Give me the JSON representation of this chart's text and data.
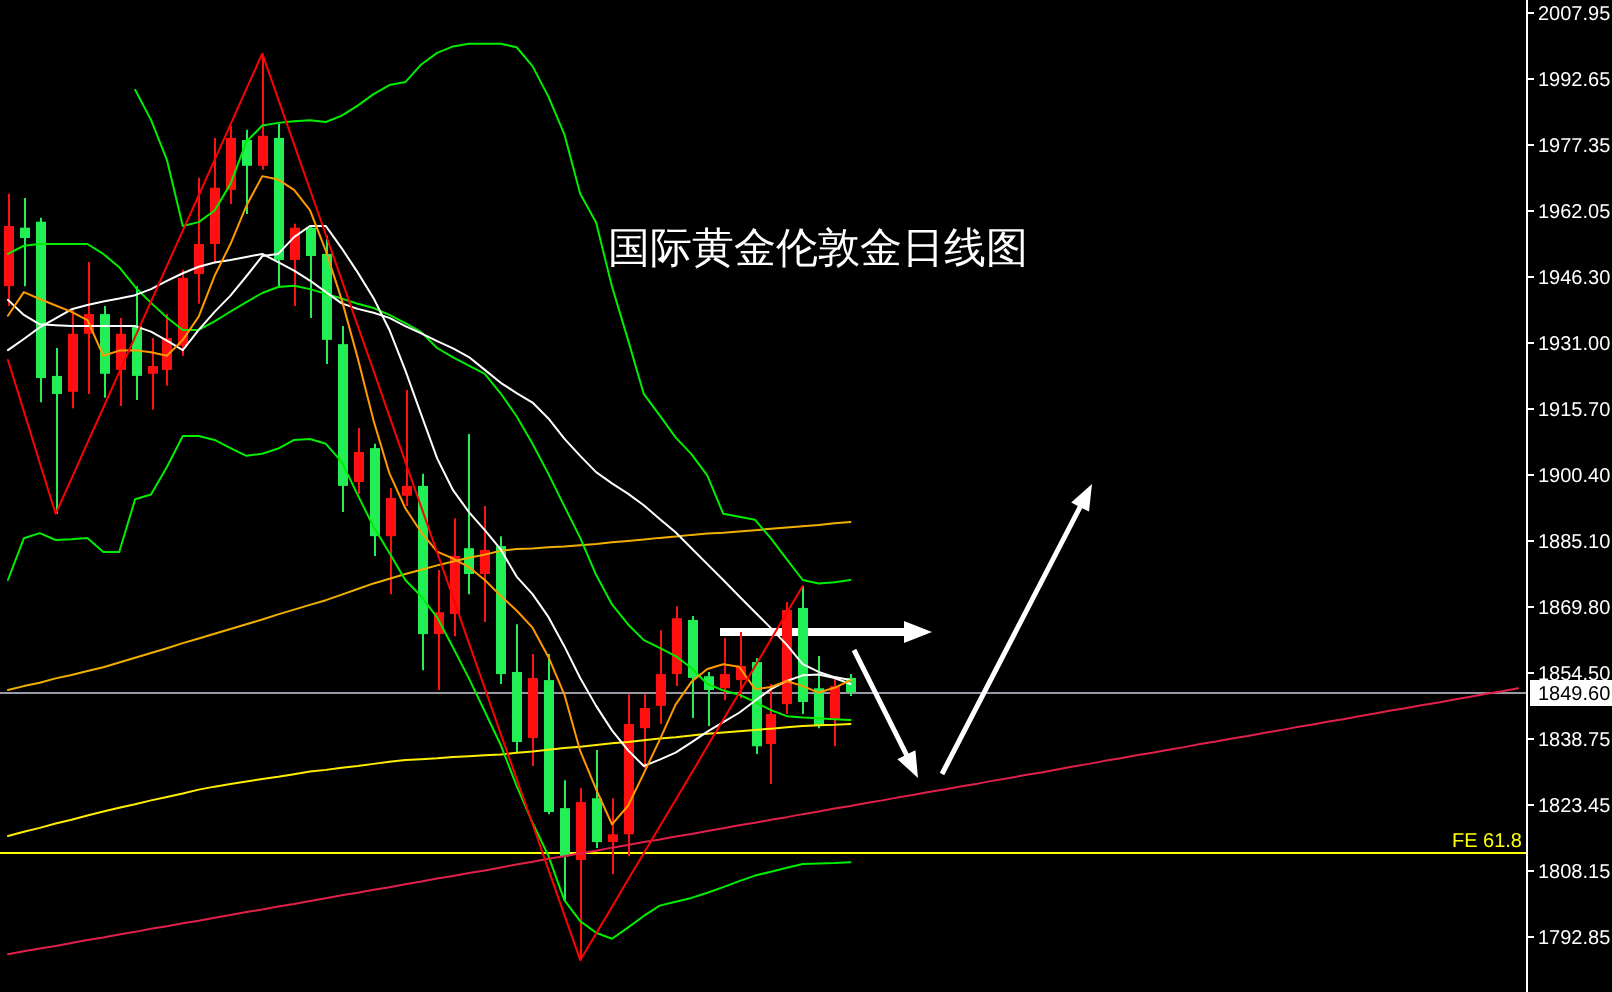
{
  "chart_data": {
    "type": "candlestick",
    "title": "国际黄金伦敦金日线图",
    "categories": [
      null,
      null,
      null,
      null,
      null,
      null,
      null,
      null,
      null,
      null,
      null,
      null,
      null,
      null,
      null,
      null,
      null,
      null,
      null,
      null,
      null,
      null,
      null,
      null,
      null,
      null,
      null,
      null,
      null,
      null,
      null,
      null,
      null,
      null,
      null,
      null,
      null,
      null,
      null,
      null,
      null,
      null,
      null,
      null,
      null,
      null,
      null,
      null,
      null,
      null,
      null,
      null,
      null,
      null,
      null,
      null,
      null,
      null,
      null,
      null,
      null,
      null,
      null,
      null,
      null,
      null,
      null,
      null,
      null,
      null,
      null,
      null,
      null,
      null,
      null,
      null,
      null,
      null,
      null,
      null,
      null,
      null,
      null,
      null,
      null,
      null,
      null,
      null,
      null,
      null,
      null,
      null,
      null,
      null,
      null,
      null
    ],
    "ohlc": [
      [
        1944.1,
        1965.6,
        1939.5,
        1958.1
      ],
      [
        1957.7,
        1964.6,
        1944.1,
        1955.3
      ],
      [
        1959.1,
        1960.0,
        1917.1,
        1922.7
      ],
      [
        1923.2,
        1929.7,
        1891.1,
        1919.0
      ],
      [
        1919.5,
        1938.6,
        1915.7,
        1933.0
      ],
      [
        1933.0,
        1949.7,
        1919.0,
        1937.6
      ],
      [
        1937.6,
        1939.5,
        1918.1,
        1923.7
      ],
      [
        1924.6,
        1936.7,
        1916.2,
        1933.0
      ],
      [
        1934.8,
        1944.1,
        1917.6,
        1923.2
      ],
      [
        1923.7,
        1932.0,
        1915.3,
        1925.5
      ],
      [
        1924.6,
        1937.6,
        1920.9,
        1932.0
      ],
      [
        1930.2,
        1947.9,
        1927.9,
        1946.0
      ],
      [
        1946.9,
        1969.3,
        1940.0,
        1953.9
      ],
      [
        1953.9,
        1978.6,
        1949.7,
        1967.0
      ],
      [
        1966.5,
        1981.4,
        1963.2,
        1978.6
      ],
      [
        1978.1,
        1980.5,
        1960.9,
        1972.1
      ],
      [
        1972.1,
        1998.2,
        1971.2,
        1979.1
      ],
      [
        1978.6,
        1981.9,
        1944.1,
        1950.2
      ],
      [
        1950.2,
        1958.6,
        1939.5,
        1957.7
      ],
      [
        1957.7,
        1958.1,
        1936.7,
        1951.1
      ],
      [
        1951.6,
        1955.8,
        1926.0,
        1931.6
      ],
      [
        1930.6,
        1934.8,
        1891.5,
        1897.6
      ],
      [
        1898.5,
        1911.1,
        1895.7,
        1905.5
      ],
      [
        1906.4,
        1907.4,
        1881.3,
        1885.9
      ],
      [
        1885.9,
        1897.1,
        1872.4,
        1894.8
      ],
      [
        1895.3,
        1919.9,
        1892.9,
        1897.6
      ],
      [
        1897.6,
        1900.4,
        1854.7,
        1863.1
      ],
      [
        1863.1,
        1878.0,
        1850.1,
        1868.2
      ],
      [
        1867.8,
        1890.1,
        1862.6,
        1881.3
      ],
      [
        1883.1,
        1909.7,
        1872.4,
        1877.1
      ],
      [
        1877.1,
        1892.9,
        1865.9,
        1882.7
      ],
      [
        1883.6,
        1885.9,
        1851.5,
        1853.8
      ],
      [
        1854.3,
        1865.4,
        1835.6,
        1838.0
      ],
      [
        1838.9,
        1858.5,
        1832.4,
        1852.9
      ],
      [
        1852.4,
        1858.5,
        1821.2,
        1821.7
      ],
      [
        1822.6,
        1829.1,
        1801.2,
        1811.4
      ],
      [
        1810.5,
        1827.3,
        1787.2,
        1824.0
      ],
      [
        1824.9,
        1836.1,
        1813.3,
        1814.7
      ],
      [
        1814.7,
        1824.9,
        1807.2,
        1816.5
      ],
      [
        1816.5,
        1849.1,
        1811.4,
        1842.2
      ],
      [
        1841.2,
        1849.1,
        1831.9,
        1845.9
      ],
      [
        1846.4,
        1864.0,
        1842.2,
        1853.8
      ],
      [
        1853.8,
        1869.6,
        1851.0,
        1866.8
      ],
      [
        1866.4,
        1867.3,
        1843.6,
        1852.9
      ],
      [
        1853.3,
        1854.3,
        1841.7,
        1850.1
      ],
      [
        1850.5,
        1862.2,
        1847.7,
        1853.8
      ],
      [
        1852.4,
        1863.6,
        1848.2,
        1855.7
      ],
      [
        1856.6,
        1857.5,
        1835.2,
        1837.0
      ],
      [
        1837.5,
        1851.5,
        1828.2,
        1844.5
      ],
      [
        1846.8,
        1870.6,
        1844.5,
        1868.7
      ],
      [
        1869.2,
        1874.3,
        1844.5,
        1847.3
      ],
      [
        1850.5,
        1858.0,
        1841.2,
        1841.7
      ],
      [
        1843.1,
        1852.9,
        1837.0,
        1851.0
      ],
      [
        1852.9,
        1853.8,
        1848.7,
        1849.6
      ],
      null,
      null,
      null,
      null,
      null,
      null,
      null,
      null,
      null,
      null,
      null,
      null,
      null,
      null,
      null,
      null,
      null,
      null,
      null,
      null,
      null,
      null,
      null,
      null,
      null,
      null,
      null,
      null,
      null,
      null,
      null,
      null,
      null,
      null,
      null,
      null,
      null,
      null,
      null,
      null,
      null,
      null
    ],
    "colors": [
      "#ff1010",
      "#22ee55",
      "#22ee55",
      "#22ee55",
      "#ff1010",
      "#ff1010",
      "#22ee55",
      "#ff1010",
      "#22ee55",
      "#ff1010",
      "#ff1010",
      "#ff1010",
      "#ff1010",
      "#ff1010",
      "#ff1010",
      "#22ee55",
      "#ff1010",
      "#22ee55",
      "#ff1010",
      "#22ee55",
      "#22ee55",
      "#22ee55",
      "#ff1010",
      "#22ee55",
      "#ff1010",
      "#ff1010",
      "#22ee55",
      "#ff1010",
      "#ff1010",
      "#22ee55",
      "#ff1010",
      "#22ee55",
      "#22ee55",
      "#ff1010",
      "#22ee55",
      "#22ee55",
      "#ff1010",
      "#22ee55",
      "#ff1010",
      "#ff1010",
      "#ff1010",
      "#ff1010",
      "#ff1010",
      "#22ee55",
      "#22ee55",
      "#ff1010",
      "#ff1010",
      "#22ee55",
      "#ff1010",
      "#ff1010",
      "#22ee55",
      "#22ee55",
      "#ff1010",
      "#22ee55",
      null,
      null,
      null,
      null,
      null,
      null,
      null,
      null,
      null,
      null,
      null,
      null,
      null,
      null,
      null,
      null,
      null,
      null,
      null,
      null,
      null,
      null,
      null,
      null,
      null,
      null,
      null,
      null,
      null,
      null,
      null,
      null,
      null,
      null,
      null,
      null,
      null,
      null,
      null,
      null,
      null,
      null
    ],
    "series": [
      {
        "type": "line",
        "color": "#ffee00",
        "values": [
          1816.1,
          1817.1,
          1818.0,
          1819.0,
          1819.9,
          1820.9,
          1821.8,
          1822.7,
          1823.5,
          1824.4,
          1825.2,
          1826.0,
          1826.9,
          1827.6,
          1828.2,
          1828.8,
          1829.4,
          1829.9,
          1830.5,
          1831.1,
          1831.5,
          1832.0,
          1832.4,
          1832.9,
          1833.4,
          1833.8,
          1834.0,
          1834.2,
          1834.5,
          1834.7,
          1834.9,
          1835.1,
          1835.5,
          1835.8,
          1836.2,
          1836.6,
          1836.9,
          1837.3,
          1837.7,
          1838.0,
          1838.4,
          1838.8,
          1839.1,
          1839.5,
          1839.9,
          1840.2,
          1840.5,
          1840.8,
          1841.1,
          1841.4,
          1841.7,
          1841.9,
          1842.0,
          1842.2,
          null,
          null,
          null,
          null,
          null,
          null,
          null,
          null,
          null,
          null,
          null,
          null,
          null,
          null,
          null,
          null,
          null,
          null,
          null,
          null,
          null,
          null,
          null,
          null,
          null,
          null,
          null,
          null,
          null,
          null,
          null,
          null,
          null,
          null,
          null,
          null,
          null,
          null,
          null,
          null,
          null,
          null
        ]
      },
      {
        "type": "line",
        "color": "#f0b000",
        "values": [
          1850.1,
          1851.0,
          1851.8,
          1852.8,
          1853.6,
          1854.5,
          1855.4,
          1856.5,
          1857.6,
          1858.7,
          1859.8,
          1861.0,
          1862.1,
          1863.2,
          1864.3,
          1865.4,
          1866.5,
          1867.7,
          1868.8,
          1869.9,
          1871.0,
          1872.3,
          1873.6,
          1874.9,
          1876.0,
          1877.1,
          1878.1,
          1879.1,
          1880.0,
          1880.9,
          1881.6,
          1882.5,
          1882.9,
          1883.0,
          1883.3,
          1883.5,
          1883.8,
          1884.1,
          1884.5,
          1884.8,
          1885.1,
          1885.5,
          1885.8,
          1886.2,
          1886.5,
          1886.7,
          1887.0,
          1887.3,
          1887.6,
          1887.9,
          1888.2,
          1888.5,
          1888.9,
          1889.2,
          null,
          null,
          null,
          null,
          null,
          null,
          null,
          null,
          null,
          null,
          null,
          null,
          null,
          null,
          null,
          null,
          null,
          null,
          null,
          null,
          null,
          null,
          null,
          null,
          null,
          null,
          null,
          null,
          null,
          null,
          null,
          null,
          null,
          null,
          null,
          null,
          null,
          null,
          null,
          null,
          null,
          null
        ]
      },
      {
        "type": "line",
        "color": "#00ee00",
        "values": [
          1875.7,
          1885.4,
          1886.6,
          1885.0,
          1885.2,
          1885.5,
          1882.2,
          1882.2,
          1894.5,
          1895.6,
          1902.0,
          1909.2,
          1909.2,
          1908.3,
          1906.4,
          1904.6,
          1905.1,
          1906.3,
          1908.3,
          1908.5,
          1907.4,
          1903.2,
          1895.5,
          1888.1,
          1882.0,
          1875.7,
          1871.9,
          1867.0,
          1860.0,
          1852.8,
          1845.1,
          1837.3,
          1827.8,
          1819.2,
          1811.5,
          1801.2,
          1796.3,
          1793.6,
          1792.2,
          1794.8,
          1797.5,
          1799.9,
          1800.8,
          1801.7,
          1802.9,
          1804.2,
          1805.6,
          1806.9,
          1807.8,
          1808.7,
          1809.6,
          1809.7,
          1809.8,
          1810.0,
          null,
          null,
          null,
          null,
          null,
          null,
          null,
          null,
          null,
          null,
          null,
          null,
          null,
          null,
          null,
          null,
          null,
          null,
          null,
          null,
          null,
          null,
          null,
          null,
          null,
          null,
          null,
          null,
          null,
          null,
          null,
          null,
          null,
          null,
          null,
          null,
          null,
          null,
          null,
          null,
          null,
          null
        ]
      },
      {
        "type": "line",
        "color": "#00ee00",
        "values": [
          1951.6,
          1953.5,
          1953.9,
          1953.9,
          1953.9,
          1953.9,
          1951.6,
          1948.5,
          1943.9,
          1940.2,
          1936.8,
          1933.9,
          1933.9,
          1935.9,
          1938.2,
          1940.4,
          1942.5,
          1943.9,
          1944.2,
          1943.4,
          1942.3,
          1941.2,
          1940.0,
          1939.0,
          1937.4,
          1935.5,
          1933.4,
          1929.7,
          1927.5,
          1925.6,
          1923.7,
          1919.1,
          1913.8,
          1907.4,
          1900.4,
          1892.9,
          1885.5,
          1876.9,
          1870.0,
          1865.4,
          1861.7,
          1859.9,
          1858.0,
          1855.2,
          1851.5,
          1850.0,
          1849.0,
          1847.3,
          1845.4,
          1844.0,
          1843.7,
          1843.5,
          1843.3,
          1843.1,
          null,
          null,
          null,
          null,
          null,
          null,
          null,
          null,
          null,
          null,
          null,
          null,
          null,
          null,
          null,
          null,
          null,
          null,
          null,
          null,
          null,
          null,
          null,
          null,
          null,
          null,
          null,
          null,
          null,
          null,
          null,
          null,
          null,
          null,
          null,
          null,
          null,
          null,
          null,
          null,
          null,
          null
        ]
      },
      {
        "type": "line",
        "color": "#00ee00",
        "values": [
          null,
          null,
          null,
          null,
          null,
          null,
          null,
          null,
          1989.8,
          1982.8,
          1973.5,
          1958.1,
          1959.0,
          1961.7,
          1967.9,
          1977.7,
          1981.5,
          1982.1,
          1982.5,
          1982.7,
          1982.3,
          1983.8,
          1986.1,
          1988.8,
          1990.9,
          1991.6,
          1995.7,
          1998.4,
          1999.9,
          2000.5,
          2000.5,
          2000.5,
          1999.7,
          1995.3,
          1988.2,
          1979.5,
          1965.6,
          1958.9,
          1944.0,
          1931.7,
          1919.0,
          1914.0,
          1908.9,
          1905.0,
          1900.0,
          1891.1,
          1890.4,
          1889.7,
          1885.4,
          1880.5,
          1875.7,
          1874.9,
          1875.2,
          1875.7,
          null,
          null,
          null,
          null,
          null,
          null,
          null,
          null,
          null,
          null,
          null,
          null,
          null,
          null,
          null,
          null,
          null,
          null,
          null,
          null,
          null,
          null,
          null,
          null,
          null,
          null,
          null,
          null,
          null,
          null,
          null,
          null,
          null,
          null,
          null,
          null,
          null,
          null,
          null,
          null,
          null,
          null
        ]
      },
      {
        "type": "line",
        "color": "#ffffff",
        "values": [
          1929.2,
          1931.8,
          1934.5,
          1936.6,
          1938.7,
          1939.7,
          1940.5,
          1941.2,
          1942.0,
          1943.4,
          1945.3,
          1947.1,
          1948.6,
          1949.6,
          1950.2,
          1950.9,
          1951.6,
          1949.7,
          1947.7,
          1945.4,
          1942.7,
          1940.1,
          1938.8,
          1937.9,
          1936.7,
          1934.8,
          1933.1,
          1931.3,
          1929.6,
          1927.6,
          1924.6,
          1921.6,
          1919.2,
          1917.0,
          1913.3,
          1908.6,
          1904.6,
          1900.8,
          1898.2,
          1895.8,
          1893.1,
          1889.9,
          1886.8,
          1883.1,
          1879.4,
          1875.7,
          1871.9,
          1868.2,
          1864.5,
          1860.6,
          1856.1,
          1854.3,
          1853.1,
          1852.4,
          null,
          null,
          null,
          null,
          null,
          null,
          null,
          null,
          null,
          null,
          null,
          null,
          null,
          null,
          null,
          null,
          null,
          null,
          null,
          null,
          null,
          null,
          null,
          null,
          null,
          null,
          null,
          null,
          null,
          null,
          null,
          null,
          null,
          null,
          null,
          null,
          null,
          null,
          null,
          null,
          null,
          null
        ]
      },
      {
        "type": "line",
        "color": "#ffffff",
        "values": [
          1940.9,
          1937.4,
          1935.2,
          1935.0,
          1934.8,
          1934.8,
          1934.8,
          1934.8,
          1934.8,
          1933.5,
          1931.4,
          1929.2,
          1933.9,
          1938.1,
          1941.9,
          1946.4,
          1951.1,
          1951.6,
          1955.5,
          1958.1,
          1958.1,
          1952.9,
          1947.3,
          1941.3,
          1933.9,
          1924.5,
          1914.2,
          1904.0,
          1896.6,
          1891.5,
          1887.3,
          1882.8,
          1876.5,
          1872.4,
          1867.1,
          1860.3,
          1852.9,
          1846.4,
          1840.7,
          1836.1,
          1832.4,
          1833.9,
          1835.5,
          1837.9,
          1840.4,
          1842.6,
          1844.8,
          1847.6,
          1850.3,
          1852.2,
          1853.5,
          1853.7,
          1852.9,
          1851.5,
          null,
          null,
          null,
          null,
          null,
          null,
          null,
          null,
          null,
          null,
          null,
          null,
          null,
          null,
          null,
          null,
          null,
          null,
          null,
          null,
          null,
          null,
          null,
          null,
          null,
          null,
          null,
          null,
          null,
          null,
          null,
          null,
          null,
          null,
          null,
          null,
          null,
          null,
          null,
          null,
          null,
          null
        ]
      },
      {
        "type": "line",
        "color": "#ff9900",
        "values": [
          1937.2,
          1942.7,
          1941.1,
          1939.6,
          1938.1,
          1936.2,
          1927.9,
          1929.1,
          1929.2,
          1928.7,
          1927.9,
          1931.6,
          1937.0,
          1946.5,
          1953.9,
          1962.8,
          1969.7,
          1968.9,
          1966.5,
          1961.8,
          1952.3,
          1940.9,
          1927.4,
          1912.8,
          1900.5,
          1892.4,
          1886.8,
          1882.3,
          1880.7,
          1878.7,
          1875.7,
          1872.0,
          1868.6,
          1864.6,
          1857.8,
          1849.1,
          1835.9,
          1827.0,
          1818.8,
          1823.1,
          1830.7,
          1838.5,
          1846.7,
          1852.0,
          1855.0,
          1856.1,
          1855.5,
          1850.3,
          1850.8,
          1852.2,
          1851.0,
          1849.5,
          1850.6,
          1852.4,
          null,
          null,
          null,
          null,
          null,
          null,
          null,
          null,
          null,
          null,
          null,
          null,
          null,
          null,
          null,
          null,
          null,
          null,
          null,
          null,
          null,
          null,
          null,
          null,
          null,
          null,
          null,
          null,
          null,
          null,
          null,
          null,
          null,
          null,
          null,
          null,
          null,
          null,
          null,
          null,
          null,
          null
        ]
      },
      {
        "type": "line",
        "color": "#e0204a",
        "values": [
          1788.6,
          1789.3,
          1789.9,
          1790.5,
          1791.2,
          1791.9,
          1792.5,
          1793.2,
          1793.8,
          1794.5,
          1795.1,
          1795.8,
          1796.4,
          1797.1,
          1797.7,
          1798.4,
          1799.0,
          1799.7,
          1800.3,
          1801.0,
          1801.6,
          1802.3,
          1802.9,
          1803.6,
          1804.2,
          1804.9,
          1805.5,
          1806.2,
          1806.8,
          1807.5,
          1808.1,
          1808.8,
          1809.5,
          1810.1,
          1810.8,
          1811.4,
          1812.1,
          1812.7,
          1813.4,
          1814.0,
          1814.7,
          1815.3,
          1816.0,
          1816.6,
          1817.3,
          1817.9,
          1818.6,
          1819.2,
          1819.9,
          1820.5,
          1821.2,
          1821.8,
          1822.5,
          1823.1,
          1823.8,
          1824.4,
          1825.1,
          1825.7,
          1826.4,
          1827.0,
          1827.7,
          1828.3,
          1829.0,
          1829.6,
          1830.3,
          1830.9,
          1831.6,
          1832.3,
          1832.9,
          1833.6,
          1834.2,
          1834.9,
          1835.5,
          1836.2,
          1836.8,
          1837.5,
          1838.1,
          1838.8,
          1839.4,
          1840.1,
          1840.7,
          1841.4,
          1842.0,
          1842.7,
          1843.3,
          1844.0,
          1844.6,
          1845.3,
          1845.9,
          1846.6,
          1847.2,
          1847.9,
          1848.5,
          1849.2,
          1849.8,
          1850.5
        ]
      },
      {
        "type": "line",
        "color": "#ff0000",
        "values": [
          1926.9,
          1915.0,
          1903.0,
          1891.1,
          1899.3,
          1907.6,
          1915.8,
          1924.1,
          1932.3,
          1940.5,
          1948.8,
          1957.0,
          1965.2,
          1973.5,
          1981.7,
          1990.0,
          1998.2,
          1987.7,
          1977.1,
          1966.6,
          1956.0,
          1945.5,
          1934.9,
          1924.4,
          1913.8,
          1903.2,
          1892.7,
          1882.1,
          1871.6,
          1861.0,
          1850.5,
          1839.9,
          1829.4,
          1818.9,
          1808.3,
          1797.8,
          1787.2,
          1793.4,
          1799.6,
          1805.9,
          1812.1,
          1818.3,
          1824.5,
          1830.7,
          1837.0,
          1843.2,
          1849.4,
          1855.6,
          1861.9,
          1868.1,
          1874.3,
          null,
          null,
          null,
          null,
          null,
          null,
          null,
          null,
          null,
          null,
          null,
          null,
          null,
          null,
          null,
          null,
          null,
          null,
          null,
          null,
          null,
          null,
          null,
          null,
          null,
          null,
          null,
          null,
          null,
          null,
          null,
          null,
          null,
          null,
          null,
          null,
          null,
          null,
          null,
          null,
          null,
          null,
          null,
          null,
          null
        ]
      }
    ],
    "ylim": [
      1779.8,
      2010.7
    ],
    "yticks": [
      2007.95,
      1992.65,
      1977.35,
      1962.05,
      {
        "value": 1946.3,
        "label": "1946.30"
      },
      {
        "value": 1931,
        "label": "1931.00"
      },
      {
        "value": 1915.7,
        "label": "1915.70"
      },
      {
        "value": 1900.4,
        "label": "1900.40"
      },
      {
        "value": 1885.1,
        "label": "1885.10"
      },
      {
        "value": 1869.8,
        "label": "1869.80"
      },
      {
        "value": 1854.5,
        "label": "1854.50"
      },
      1838.75,
      1823.45,
      1808.15,
      1792.85
    ],
    "ref_lines": [
      {
        "axis": "y",
        "value": 1849.6,
        "label": "1849.60",
        "color": "#9a9aa6"
      },
      {
        "axis": "y",
        "value": 1812.4,
        "label": "FE 61.8",
        "color": "#ffff00"
      }
    ]
  }
}
